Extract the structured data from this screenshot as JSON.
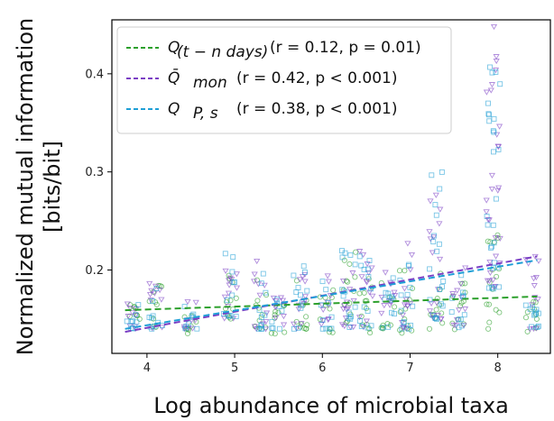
{
  "chart_data": {
    "type": "scatter",
    "xlabel": "Log abundance of microbial taxa",
    "ylabel_line1": "Normalized mutual information",
    "ylabel_line2": "[bits/bit]",
    "xlim": [
      3.6,
      8.6
    ],
    "ylim": [
      0.115,
      0.455
    ],
    "xticks": [
      4,
      5,
      6,
      7,
      8
    ],
    "xtick_labels": [
      "4",
      "5",
      "6",
      "7",
      "8"
    ],
    "yticks": [
      0.2,
      0.3,
      0.4
    ],
    "ytick_labels": [
      "0.2",
      "0.3",
      "0.4"
    ],
    "grid": false,
    "legend_position": "upper-left",
    "series": [
      {
        "key": "t_n_days",
        "marker": "circle",
        "color": "#2ca02c",
        "legend_main": "Q",
        "legend_sub": "(t − n  days)",
        "legend_stats": "(r = 0.12, p = 0.01)",
        "fit": {
          "x": [
            3.75,
            8.45
          ],
          "y": [
            0.159,
            0.173
          ]
        },
        "clusters": [
          {
            "x": 3.85,
            "y": [
              0.15,
              0.17
            ]
          },
          {
            "x": 4.1,
            "y": [
              0.14,
              0.19
            ]
          },
          {
            "x": 4.5,
            "y": [
              0.135,
              0.155
            ]
          },
          {
            "x": 4.95,
            "y": [
              0.14,
              0.2
            ]
          },
          {
            "x": 5.3,
            "y": [
              0.14,
              0.19
            ]
          },
          {
            "x": 5.5,
            "y": [
              0.135,
              0.17
            ]
          },
          {
            "x": 5.75,
            "y": [
              0.14,
              0.2
            ]
          },
          {
            "x": 6.05,
            "y": [
              0.135,
              0.18
            ]
          },
          {
            "x": 6.3,
            "y": [
              0.14,
              0.22
            ]
          },
          {
            "x": 6.5,
            "y": [
              0.135,
              0.2
            ]
          },
          {
            "x": 6.75,
            "y": [
              0.14,
              0.19
            ]
          },
          {
            "x": 6.95,
            "y": [
              0.135,
              0.2
            ]
          },
          {
            "x": 7.3,
            "y": [
              0.14,
              0.2
            ]
          },
          {
            "x": 7.55,
            "y": [
              0.135,
              0.19
            ]
          },
          {
            "x": 7.95,
            "y": [
              0.14,
              0.25
            ]
          },
          {
            "x": 8.4,
            "y": [
              0.135,
              0.17
            ]
          }
        ]
      },
      {
        "key": "mon",
        "marker": "triangle",
        "color": "#7b3fc4",
        "legend_main": "Q̄",
        "legend_sub": "mon",
        "legend_stats": "(r = 0.42, p < 0.001)",
        "fit": {
          "x": [
            3.75,
            8.45
          ],
          "y": [
            0.137,
            0.214
          ]
        },
        "clusters": [
          {
            "x": 3.85,
            "y": [
              0.14,
              0.17
            ]
          },
          {
            "x": 4.1,
            "y": [
              0.14,
              0.19
            ]
          },
          {
            "x": 4.5,
            "y": [
              0.14,
              0.17
            ]
          },
          {
            "x": 4.95,
            "y": [
              0.15,
              0.22
            ]
          },
          {
            "x": 5.3,
            "y": [
              0.14,
              0.21
            ]
          },
          {
            "x": 5.5,
            "y": [
              0.14,
              0.18
            ]
          },
          {
            "x": 5.75,
            "y": [
              0.14,
              0.21
            ]
          },
          {
            "x": 6.05,
            "y": [
              0.14,
              0.2
            ]
          },
          {
            "x": 6.3,
            "y": [
              0.14,
              0.23
            ]
          },
          {
            "x": 6.5,
            "y": [
              0.14,
              0.22
            ]
          },
          {
            "x": 6.75,
            "y": [
              0.14,
              0.2
            ]
          },
          {
            "x": 6.95,
            "y": [
              0.14,
              0.23
            ]
          },
          {
            "x": 7.3,
            "y": [
              0.15,
              0.28
            ]
          },
          {
            "x": 7.55,
            "y": [
              0.14,
              0.21
            ]
          },
          {
            "x": 7.95,
            "y": [
              0.18,
              0.45
            ]
          },
          {
            "x": 8.4,
            "y": [
              0.14,
              0.22
            ]
          }
        ]
      },
      {
        "key": "ps",
        "marker": "square",
        "color": "#1f9fd6",
        "legend_main": "Q",
        "legend_sub": "P, s",
        "legend_stats": "(r = 0.38, p < 0.001)",
        "fit": {
          "x": [
            3.75,
            8.45
          ],
          "y": [
            0.14,
            0.21
          ]
        },
        "clusters": [
          {
            "x": 3.85,
            "y": [
              0.14,
              0.175
            ]
          },
          {
            "x": 4.1,
            "y": [
              0.14,
              0.19
            ]
          },
          {
            "x": 4.5,
            "y": [
              0.14,
              0.165
            ]
          },
          {
            "x": 4.95,
            "y": [
              0.15,
              0.22
            ]
          },
          {
            "x": 5.3,
            "y": [
              0.14,
              0.2
            ]
          },
          {
            "x": 5.5,
            "y": [
              0.14,
              0.175
            ]
          },
          {
            "x": 5.75,
            "y": [
              0.14,
              0.21
            ]
          },
          {
            "x": 6.05,
            "y": [
              0.14,
              0.19
            ]
          },
          {
            "x": 6.3,
            "y": [
              0.14,
              0.23
            ]
          },
          {
            "x": 6.5,
            "y": [
              0.14,
              0.22
            ]
          },
          {
            "x": 6.75,
            "y": [
              0.14,
              0.2
            ]
          },
          {
            "x": 6.95,
            "y": [
              0.14,
              0.22
            ]
          },
          {
            "x": 7.3,
            "y": [
              0.15,
              0.31
            ]
          },
          {
            "x": 7.55,
            "y": [
              0.14,
              0.2
            ]
          },
          {
            "x": 7.95,
            "y": [
              0.18,
              0.41
            ]
          },
          {
            "x": 8.4,
            "y": [
              0.14,
              0.2
            ]
          }
        ]
      }
    ]
  }
}
